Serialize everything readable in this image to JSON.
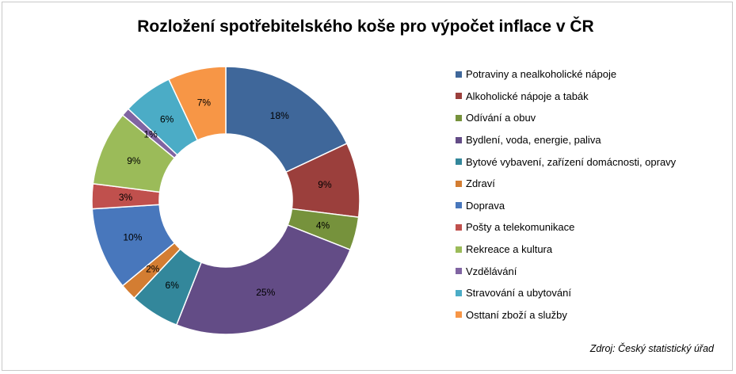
{
  "chart_data": {
    "type": "pie",
    "title": "Rozložení spotřebitelského  koše pro výpočet inflace v ČR",
    "source": "Zdroj: Český statistický úřad",
    "legend_position": "right",
    "categories": [
      "Potraviny a nealkoholické nápoje",
      "Alkoholické nápoje a tabák",
      "Odívání a obuv",
      "Bydlení, voda, energie, paliva",
      "Bytové vybavení, zařízení domácnosti, opravy",
      "Zdraví",
      "Doprava",
      "Pošty a telekomunikace",
      "Rekreace a kultura",
      "Vzdělávání",
      "Stravování a ubytování",
      "Osttaní zboží a služby"
    ],
    "values": [
      18,
      9,
      4,
      25,
      6,
      2,
      10,
      3,
      9,
      1,
      6,
      7
    ],
    "data_labels": [
      "18%",
      "9%",
      "4%",
      "25%",
      "6%",
      "2%",
      "10%",
      "3%",
      "9%",
      "1%",
      "6%",
      "7%"
    ],
    "colors": [
      "#3F679A",
      "#9B3F3C",
      "#76923C",
      "#634C86",
      "#33879B",
      "#D37D32",
      "#4877BC",
      "#C0504D",
      "#9BBB59",
      "#8064A2",
      "#4BACC6",
      "#F79646"
    ]
  }
}
